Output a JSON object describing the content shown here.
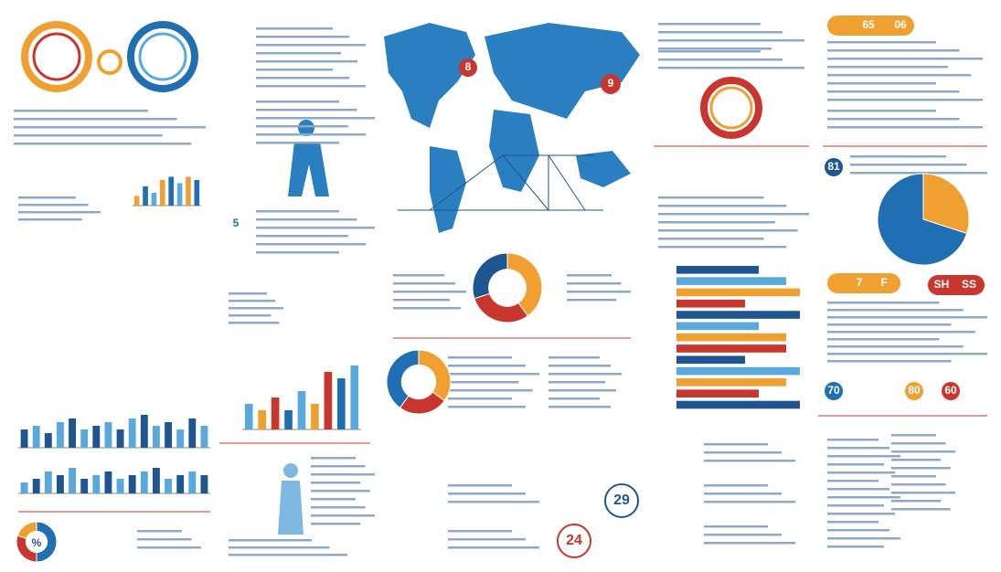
{
  "badges": [
    "65",
    "06",
    "81",
    "7",
    "F",
    "SH",
    "SS",
    "70",
    "80",
    "60",
    "29",
    "24",
    "%",
    "5",
    "9",
    "8"
  ],
  "charts": [
    {
      "type": "bar",
      "values": [
        3,
        6,
        4,
        8,
        9,
        7,
        9,
        8
      ],
      "ylim": [
        0,
        10
      ],
      "colors": [
        "#f0a030",
        "#1f6fb2",
        "#5aa9dd"
      ]
    },
    {
      "type": "bar",
      "values": [
        4,
        3,
        5,
        3,
        6,
        4,
        9,
        8,
        10
      ],
      "ylim": [
        0,
        10
      ],
      "colors": [
        "#5aa9dd",
        "#f0a030",
        "#c8362e",
        "#1f6fb2"
      ]
    },
    {
      "type": "bar",
      "values": [
        5,
        6,
        4,
        7,
        8,
        5,
        6,
        7,
        5,
        8,
        9,
        6,
        7,
        5,
        8,
        6
      ],
      "ylim": [
        0,
        10
      ],
      "colors": [
        "#1f5590",
        "#5aa9dd"
      ]
    },
    {
      "type": "bar",
      "values": [
        3,
        4,
        6,
        5,
        7,
        4,
        5,
        6,
        4,
        5,
        6,
        7,
        4,
        5,
        6,
        5
      ],
      "ylim": [
        0,
        10
      ],
      "colors": [
        "#5aa9dd",
        "#1f5590"
      ]
    },
    {
      "type": "hbar",
      "values": [
        6,
        8,
        9,
        5,
        9,
        6,
        8,
        8,
        5,
        9,
        8,
        6,
        9
      ],
      "xlim": [
        0,
        10
      ],
      "colors": [
        "#1f5590",
        "#5aa9dd",
        "#f0a030",
        "#c8362e"
      ]
    },
    {
      "type": "pie",
      "values": [
        30,
        70
      ],
      "colors": [
        "#f0a030",
        "#1f6fb2"
      ]
    },
    {
      "type": "pie",
      "values": [
        40,
        30,
        30
      ],
      "colors": [
        "#f0a030",
        "#c8362e",
        "#1f5590"
      ],
      "donut": true
    },
    {
      "type": "pie",
      "values": [
        35,
        25,
        40
      ],
      "colors": [
        "#f0a030",
        "#c8362e",
        "#1f6fb2"
      ],
      "donut": true
    },
    {
      "type": "pie",
      "values": [
        50,
        30,
        20
      ],
      "colors": [
        "#1f6fb2",
        "#c8362e",
        "#f0a030"
      ],
      "donut": true
    }
  ]
}
